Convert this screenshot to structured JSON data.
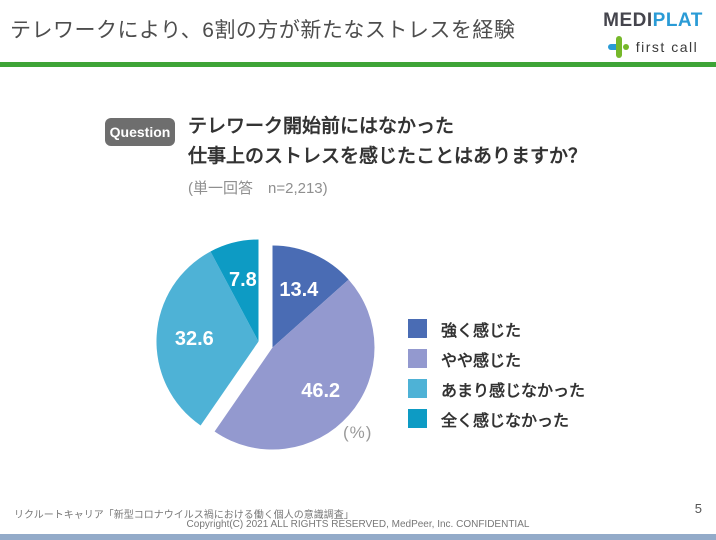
{
  "header": {
    "title": "テレワークにより、6割の方が新たなストレスを経験",
    "logo": {
      "medi": "MEDI",
      "plat": "PLAT",
      "first_call": "first call"
    }
  },
  "question": {
    "badge": "Question",
    "line1": "テレワーク開始前にはなかった",
    "line2": "仕事上のストレスを感じたことはありますか？",
    "note": "(単一回答　n=2,213)"
  },
  "chart_data": {
    "type": "pie",
    "categories": [
      "強く感じた",
      "やや感じた",
      "あまり感じなかった",
      "全く感じなかった"
    ],
    "values": [
      13.4,
      46.2,
      32.6,
      7.8
    ],
    "colors": [
      "#4a6cb4",
      "#9399cf",
      "#4eb2d6",
      "#0d9bc4"
    ],
    "unit_label": "(%)",
    "start_angle_deg": 0,
    "clockwise": true,
    "exploded_groups": [
      [
        0,
        1
      ],
      [
        2,
        3
      ]
    ],
    "legend_position": "right"
  },
  "footer": {
    "source": "リクルートキャリア「新型コロナウイルス禍における働く個人の意識調査」",
    "copyright": "Copyright(C) 2021 ALL RIGHTS RESERVED, MedPeer, Inc. CONFIDENTIAL",
    "page_number": "5"
  },
  "colors": {
    "accent_green": "#3ea437",
    "logo_blue": "#2a9bd6",
    "logo_green": "#76b82a",
    "badge_gray": "#6e6e6e",
    "bottom_bar_blue": "#93abc9"
  }
}
